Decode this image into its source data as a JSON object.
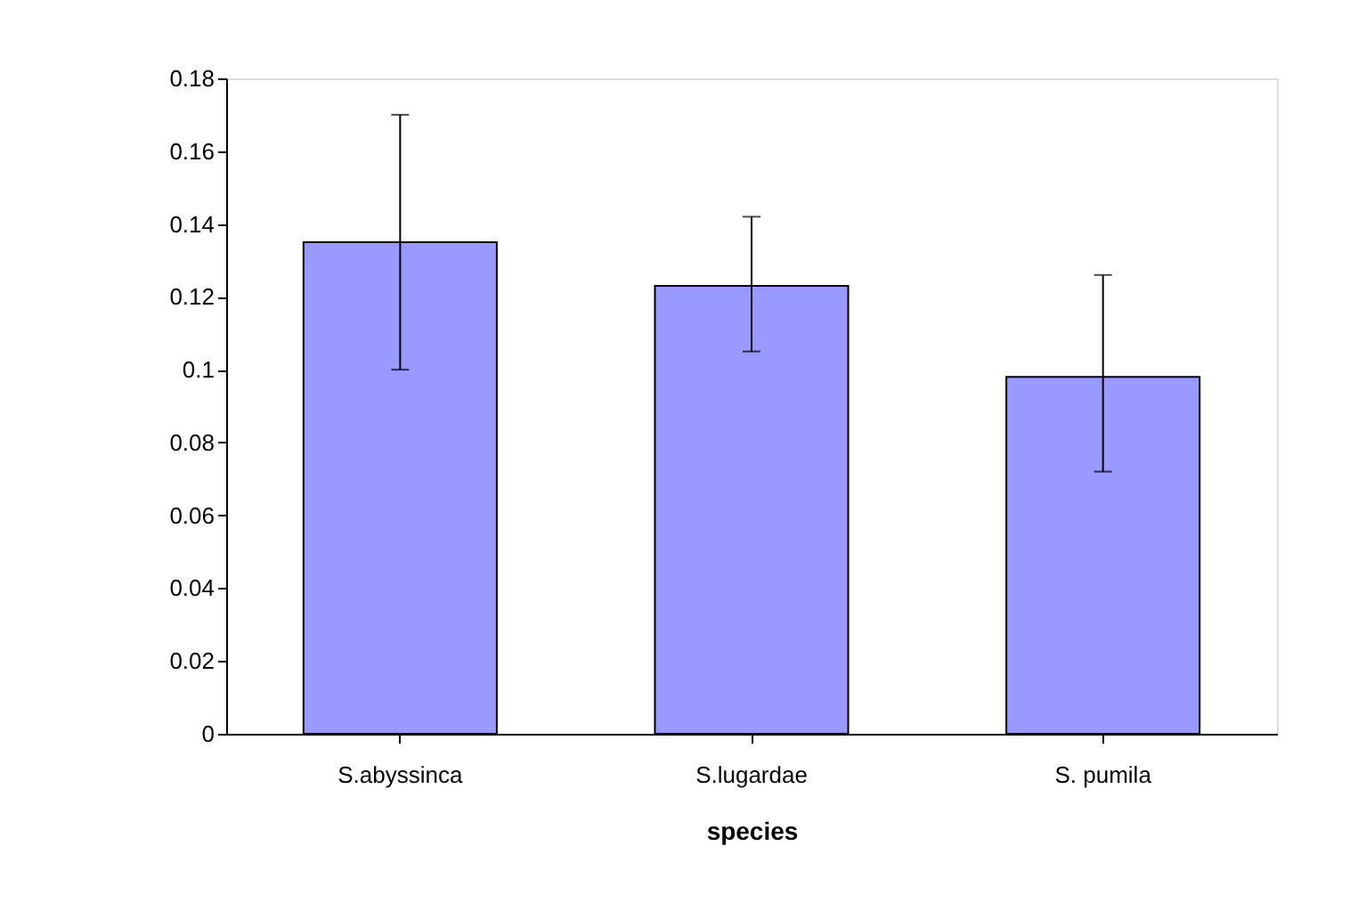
{
  "chart_data": {
    "type": "bar",
    "xlabel": "species",
    "categories": [
      "S.abyssinca",
      "S.lugardae",
      "S. pumila"
    ],
    "values": [
      0.135,
      0.123,
      0.098
    ],
    "errors": [
      [
        0.1,
        0.17
      ],
      [
        0.105,
        0.142
      ],
      [
        0.072,
        0.126
      ]
    ],
    "color": "#9999ff",
    "ylim": [
      0,
      0.18
    ],
    "yticks": [
      0,
      0.02,
      0.04,
      0.06,
      0.08,
      0.1,
      0.12,
      0.14,
      0.16,
      0.18
    ],
    "grid": false
  }
}
